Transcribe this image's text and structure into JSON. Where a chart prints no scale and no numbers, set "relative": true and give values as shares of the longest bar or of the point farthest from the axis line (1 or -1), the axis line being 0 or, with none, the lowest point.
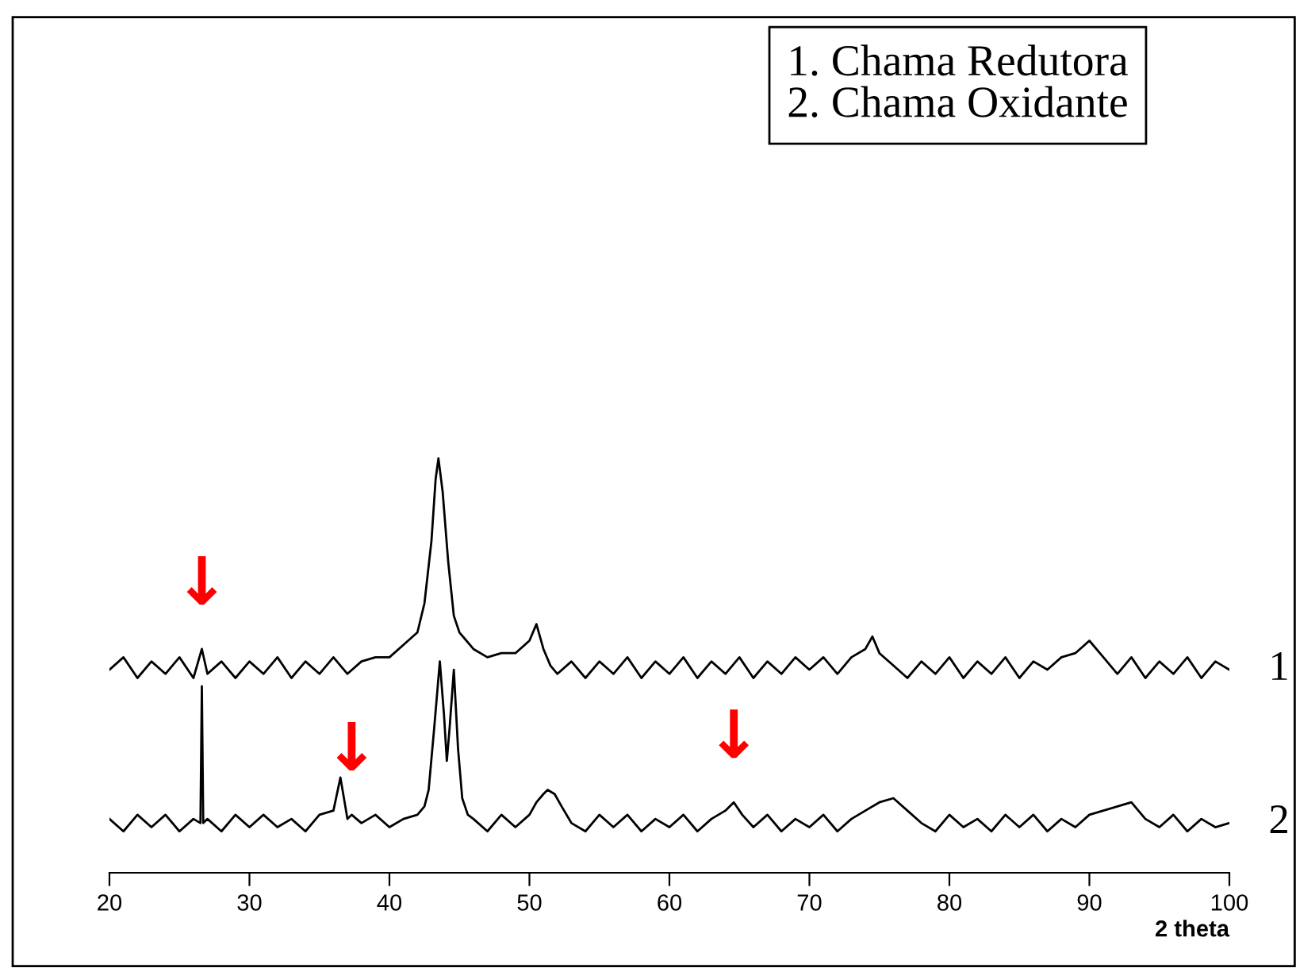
{
  "chart_data": {
    "type": "line",
    "relative": true,
    "xlabel": "2 theta",
    "xlim": [
      20,
      100
    ],
    "xticks": [
      20,
      30,
      40,
      50,
      60,
      70,
      80,
      90,
      100
    ],
    "grid": false,
    "tick_labels": "x",
    "series": [
      {
        "name": "1",
        "color": "#000000",
        "x": [
          20,
          21,
          22,
          23,
          24,
          25,
          26,
          26.6,
          27,
          28,
          29,
          30,
          31,
          32,
          33,
          34,
          35,
          36,
          37,
          38,
          39,
          40,
          41,
          42,
          42.5,
          43,
          43.3,
          43.5,
          43.8,
          44.2,
          44.6,
          45,
          45.5,
          46,
          47,
          48,
          49,
          50,
          50.5,
          51,
          51.5,
          52,
          53,
          54,
          55,
          56,
          57,
          58,
          59,
          60,
          61,
          62,
          63,
          64,
          65,
          66,
          67,
          68,
          69,
          70,
          71,
          72,
          73,
          74,
          74.5,
          75,
          76,
          77,
          78,
          79,
          80,
          81,
          82,
          83,
          84,
          85,
          86,
          87,
          88,
          89,
          90,
          91,
          92,
          93,
          94,
          95,
          96,
          97,
          98,
          99,
          100
        ],
        "values": [
          0.49,
          0.52,
          0.47,
          0.51,
          0.48,
          0.52,
          0.47,
          0.54,
          0.48,
          0.51,
          0.47,
          0.51,
          0.48,
          0.52,
          0.47,
          0.51,
          0.48,
          0.52,
          0.48,
          0.51,
          0.52,
          0.52,
          0.55,
          0.58,
          0.65,
          0.8,
          0.95,
          1.0,
          0.92,
          0.75,
          0.62,
          0.58,
          0.56,
          0.54,
          0.52,
          0.53,
          0.53,
          0.56,
          0.6,
          0.54,
          0.5,
          0.48,
          0.51,
          0.47,
          0.51,
          0.48,
          0.52,
          0.47,
          0.51,
          0.48,
          0.52,
          0.47,
          0.51,
          0.48,
          0.52,
          0.47,
          0.51,
          0.48,
          0.52,
          0.49,
          0.52,
          0.48,
          0.52,
          0.54,
          0.57,
          0.53,
          0.5,
          0.47,
          0.51,
          0.48,
          0.52,
          0.47,
          0.51,
          0.48,
          0.52,
          0.47,
          0.51,
          0.49,
          0.52,
          0.53,
          0.56,
          0.52,
          0.48,
          0.52,
          0.47,
          0.51,
          0.48,
          0.52,
          0.47,
          0.51,
          0.49
        ]
      },
      {
        "name": "2",
        "color": "#000000",
        "x": [
          20,
          21,
          22,
          23,
          24,
          25,
          26,
          26.5,
          26.6,
          26.7,
          27,
          28,
          29,
          30,
          31,
          32,
          33,
          34,
          35,
          36,
          36.5,
          37,
          37.3,
          38,
          39,
          40,
          41,
          42,
          42.5,
          42.8,
          43.2,
          43.6,
          43.9,
          44.1,
          44.3,
          44.6,
          44.9,
          45.2,
          45.6,
          46,
          47,
          48,
          49,
          50,
          50.5,
          51,
          51.3,
          51.8,
          52.3,
          53,
          54,
          55,
          56,
          57,
          58,
          59,
          60,
          61,
          62,
          63,
          64,
          64.6,
          65.2,
          66,
          67,
          68,
          69,
          70,
          71,
          72,
          73,
          74,
          75,
          76,
          77,
          78,
          79,
          80,
          81,
          82,
          83,
          84,
          85,
          86,
          87,
          88,
          89,
          90,
          91,
          92,
          93,
          94,
          95,
          96,
          97,
          98,
          99,
          100
        ],
        "values": [
          0.13,
          0.1,
          0.14,
          0.11,
          0.14,
          0.1,
          0.13,
          0.12,
          0.45,
          0.12,
          0.13,
          0.1,
          0.14,
          0.11,
          0.14,
          0.11,
          0.13,
          0.1,
          0.14,
          0.15,
          0.23,
          0.13,
          0.14,
          0.12,
          0.14,
          0.11,
          0.13,
          0.14,
          0.16,
          0.2,
          0.35,
          0.51,
          0.38,
          0.27,
          0.35,
          0.49,
          0.3,
          0.18,
          0.14,
          0.13,
          0.1,
          0.14,
          0.11,
          0.14,
          0.17,
          0.19,
          0.2,
          0.19,
          0.16,
          0.12,
          0.1,
          0.14,
          0.11,
          0.14,
          0.1,
          0.13,
          0.11,
          0.14,
          0.1,
          0.13,
          0.15,
          0.17,
          0.14,
          0.11,
          0.14,
          0.1,
          0.13,
          0.11,
          0.14,
          0.1,
          0.13,
          0.15,
          0.17,
          0.18,
          0.15,
          0.12,
          0.1,
          0.14,
          0.11,
          0.13,
          0.1,
          0.14,
          0.11,
          0.14,
          0.1,
          0.13,
          0.11,
          0.14,
          0.15,
          0.16,
          0.17,
          0.13,
          0.11,
          0.14,
          0.1,
          0.13,
          0.11,
          0.12
        ]
      }
    ],
    "annotations": [
      "1. Chama Redutora",
      "2. Chama Oxidante",
      {
        "text": "↓",
        "x": 26.6,
        "y": 0.54
      },
      {
        "text": "↓",
        "x": 37.3,
        "y": 0.14
      },
      {
        "text": "↓",
        "x": 64.6,
        "y": 0.17
      }
    ]
  }
}
